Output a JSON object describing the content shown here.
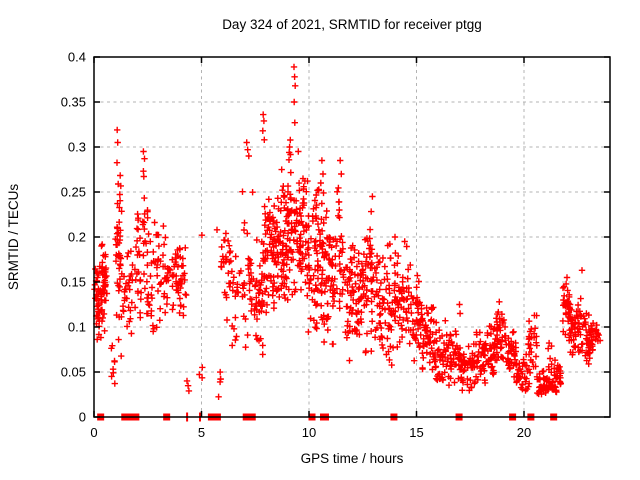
{
  "window": {
    "title": "Day 324 of 2021, SRMTID for receiver ptgg"
  },
  "colors": {
    "marker": "#ff0000",
    "axis": "#000000",
    "grid": "#b3b3b3",
    "background": "#ffffff",
    "text": "#000000"
  },
  "chart_data": {
    "type": "scatter",
    "title": "Day 324 of 2021, SRMTID for receiver ptgg",
    "xlabel": "GPS time / hours",
    "ylabel": "SRMTID / TECUs",
    "xlim": [
      0,
      24
    ],
    "ylim": [
      0,
      0.4
    ],
    "xticks": [
      0,
      5,
      10,
      15,
      20
    ],
    "xtick_labels": [
      "0",
      "5",
      "10",
      "15",
      "20"
    ],
    "yticks": [
      0,
      0.05,
      0.1,
      0.15,
      0.2,
      0.25,
      0.3,
      0.35,
      0.4
    ],
    "ytick_labels": [
      "0",
      "0.05",
      "0.1",
      "0.15",
      "0.2",
      "0.25",
      "0.3",
      "0.35",
      "0.4"
    ],
    "grid": true,
    "legend": "none",
    "marker": "plus",
    "marker_color": "#ff0000",
    "cluster_format": "[t_start_h, t_end_h, n_points, y_min_TECU, y_max_TECU, bias(c=center,l=low)]",
    "point_clusters": [
      [
        0.02,
        0.28,
        20,
        0.09,
        0.19,
        "c"
      ],
      [
        0.05,
        0.62,
        55,
        0.08,
        0.175,
        "c"
      ],
      [
        0.3,
        0.55,
        10,
        0.14,
        0.195,
        "c"
      ],
      [
        0.8,
        1.0,
        8,
        0.03,
        0.095,
        "c"
      ],
      [
        1.0,
        1.3,
        45,
        0.06,
        0.3,
        "c"
      ],
      [
        1.35,
        1.8,
        30,
        0.08,
        0.2,
        "c"
      ],
      [
        1.9,
        2.2,
        24,
        0.09,
        0.23,
        "c"
      ],
      [
        2.25,
        2.5,
        22,
        0.1,
        0.295,
        "c"
      ],
      [
        2.5,
        3.0,
        30,
        0.08,
        0.22,
        "c"
      ],
      [
        3.0,
        3.55,
        30,
        0.1,
        0.22,
        "c"
      ],
      [
        3.6,
        4.3,
        46,
        0.1,
        0.2,
        "c"
      ],
      [
        4.3,
        4.45,
        3,
        0.02,
        0.06,
        "c"
      ],
      [
        4.85,
        5.1,
        3,
        0.03,
        0.07,
        "c"
      ],
      [
        5.45,
        5.9,
        5,
        0.02,
        0.06,
        "c"
      ],
      [
        5.9,
        6.35,
        26,
        0.1,
        0.25,
        "c"
      ],
      [
        6.35,
        6.85,
        20,
        0.07,
        0.19,
        "c"
      ],
      [
        6.9,
        7.45,
        32,
        0.06,
        0.27,
        "c"
      ],
      [
        7.45,
        7.85,
        34,
        0.05,
        0.21,
        "c"
      ],
      [
        7.8,
        8.05,
        26,
        0.1,
        0.26,
        "c"
      ],
      [
        8.05,
        8.55,
        55,
        0.1,
        0.27,
        "c"
      ],
      [
        8.5,
        9.0,
        60,
        0.11,
        0.29,
        "c"
      ],
      [
        9.0,
        9.45,
        55,
        0.12,
        0.31,
        "c"
      ],
      [
        9.45,
        9.95,
        55,
        0.11,
        0.29,
        "c"
      ],
      [
        9.95,
        10.45,
        55,
        0.09,
        0.26,
        "c"
      ],
      [
        10.45,
        10.85,
        45,
        0.08,
        0.285,
        "c"
      ],
      [
        10.85,
        11.3,
        42,
        0.07,
        0.24,
        "c"
      ],
      [
        11.3,
        11.6,
        25,
        0.1,
        0.27,
        "c"
      ],
      [
        11.6,
        12.1,
        40,
        0.06,
        0.22,
        "c"
      ],
      [
        12.1,
        12.6,
        45,
        0.07,
        0.2,
        "c"
      ],
      [
        12.6,
        13.1,
        45,
        0.07,
        0.245,
        "c"
      ],
      [
        13.1,
        13.65,
        42,
        0.06,
        0.19,
        "c"
      ],
      [
        13.65,
        14.15,
        42,
        0.05,
        0.2,
        "c"
      ],
      [
        14.15,
        14.75,
        46,
        0.06,
        0.2,
        "c"
      ],
      [
        14.75,
        15.25,
        42,
        0.05,
        0.17,
        "c"
      ],
      [
        15.25,
        15.8,
        45,
        0.04,
        0.14,
        "c"
      ],
      [
        15.8,
        16.45,
        48,
        0.03,
        0.11,
        "c"
      ],
      [
        16.45,
        17.05,
        42,
        0.03,
        0.1,
        "c"
      ],
      [
        17.05,
        17.65,
        42,
        0.025,
        0.09,
        "c"
      ],
      [
        17.65,
        18.2,
        40,
        0.03,
        0.1,
        "c"
      ],
      [
        18.2,
        18.7,
        38,
        0.04,
        0.115,
        "c"
      ],
      [
        18.7,
        19.15,
        36,
        0.05,
        0.13,
        "c"
      ],
      [
        19.15,
        19.65,
        34,
        0.04,
        0.1,
        "c"
      ],
      [
        19.65,
        20.2,
        32,
        0.025,
        0.075,
        "c"
      ],
      [
        20.2,
        20.6,
        30,
        0.03,
        0.12,
        "c"
      ],
      [
        20.6,
        21.1,
        34,
        0.025,
        0.08,
        "l"
      ],
      [
        21.1,
        21.45,
        26,
        0.03,
        0.105,
        "l"
      ],
      [
        21.45,
        21.8,
        20,
        0.02,
        0.06,
        "c"
      ],
      [
        21.8,
        22.15,
        30,
        0.09,
        0.155,
        "c"
      ],
      [
        22.1,
        22.7,
        55,
        0.06,
        0.135,
        "c"
      ],
      [
        22.7,
        23.25,
        50,
        0.05,
        0.125,
        "c"
      ],
      [
        23.25,
        23.55,
        12,
        0.07,
        0.11,
        "c"
      ]
    ],
    "highlight_points": [
      [
        0.35,
        0.19
      ],
      [
        1.08,
        0.319
      ],
      [
        1.1,
        0.305
      ],
      [
        2.3,
        0.295
      ],
      [
        2.35,
        0.287
      ],
      [
        5.02,
        0.202
      ],
      [
        5.72,
        0.208
      ],
      [
        7.1,
        0.305
      ],
      [
        7.15,
        0.297
      ],
      [
        7.2,
        0.29
      ],
      [
        7.85,
        0.318
      ],
      [
        7.87,
        0.336
      ],
      [
        7.9,
        0.329
      ],
      [
        7.92,
        0.308
      ],
      [
        9.1,
        0.3
      ],
      [
        9.3,
        0.389
      ],
      [
        9.31,
        0.35
      ],
      [
        9.33,
        0.378
      ],
      [
        9.34,
        0.327
      ],
      [
        9.36,
        0.368
      ],
      [
        9.5,
        0.295
      ],
      [
        10.55,
        0.26
      ],
      [
        10.6,
        0.285
      ],
      [
        10.65,
        0.27
      ],
      [
        11.45,
        0.285
      ],
      [
        11.5,
        0.27
      ],
      [
        12.95,
        0.245
      ],
      [
        14.0,
        0.2
      ],
      [
        14.45,
        0.195
      ],
      [
        17.0,
        0.125
      ],
      [
        17.03,
        0.115
      ],
      [
        18.85,
        0.128
      ],
      [
        22.0,
        0.155
      ],
      [
        22.7,
        0.163
      ]
    ],
    "axis_gap_markers": {
      "note": "red squares drawn on the y=0 axis line, t in hours, w/h in px",
      "items": [
        {
          "t": 0.31,
          "w": 7
        },
        {
          "t": 1.5,
          "w": 10
        },
        {
          "t": 1.9,
          "w": 9
        },
        {
          "t": 3.38,
          "w": 7
        },
        {
          "t": 4.33,
          "w": 2,
          "h": 9
        },
        {
          "t": 4.93,
          "w": 2,
          "h": 9
        },
        {
          "t": 5.6,
          "w": 13
        },
        {
          "t": 7.22,
          "w": 13
        },
        {
          "t": 10.14,
          "w": 7
        },
        {
          "t": 10.72,
          "w": 9
        },
        {
          "t": 13.95,
          "w": 7
        },
        {
          "t": 16.98,
          "w": 7
        },
        {
          "t": 19.47,
          "w": 7
        },
        {
          "t": 20.32,
          "w": 7
        },
        {
          "t": 21.38,
          "w": 7
        }
      ]
    }
  }
}
